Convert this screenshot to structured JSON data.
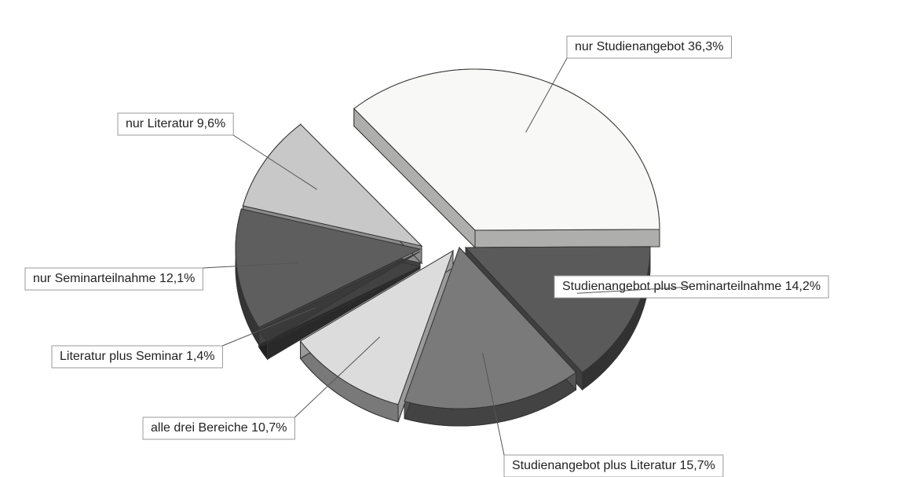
{
  "chart_data": {
    "type": "pie",
    "categories": [
      "nur Studienangebot",
      "Studienangebot plus Seminarteilnahme",
      "Studienangebot plus Literatur",
      "alle drei Bereiche",
      "Literatur plus Seminar",
      "nur Seminarteilnahme",
      "nur Literatur"
    ],
    "values": [
      36.3,
      14.2,
      15.7,
      10.7,
      1.4,
      12.1,
      9.6
    ],
    "value_labels": [
      "36,3%",
      "14,2%",
      "15,7%",
      "10,7%",
      "1,4%",
      "12,1%",
      "9,6%"
    ],
    "colors": [
      "#f8f8f6",
      "#5a5a5a",
      "#7a7a7a",
      "#dcdcdc",
      "#3a3a3a",
      "#5e5e5e",
      "#c8c8c8"
    ]
  }
}
